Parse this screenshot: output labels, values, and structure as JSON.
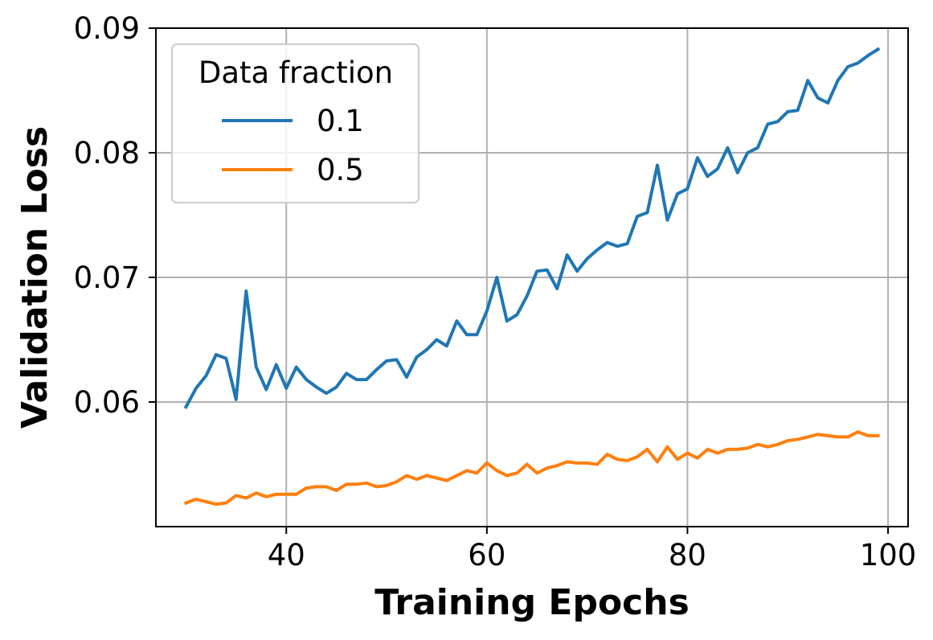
{
  "chart_data": {
    "type": "line",
    "title": "",
    "xlabel": "Training Epochs",
    "ylabel": "Validation Loss",
    "xlim": [
      27,
      102
    ],
    "ylim": [
      0.05,
      0.09
    ],
    "xticks": [
      40,
      60,
      80,
      100
    ],
    "yticks": [
      0.06,
      0.07,
      0.08,
      0.09
    ],
    "xtick_labels": [
      "40",
      "60",
      "80",
      "100"
    ],
    "ytick_labels": [
      "0.06",
      "0.07",
      "0.08",
      "0.09"
    ],
    "grid": true,
    "legend": {
      "title": "Data fraction",
      "position": "top-left"
    },
    "x": [
      30,
      31,
      32,
      33,
      34,
      35,
      36,
      37,
      38,
      39,
      40,
      41,
      42,
      43,
      44,
      45,
      46,
      47,
      48,
      49,
      50,
      51,
      52,
      53,
      54,
      55,
      56,
      57,
      58,
      59,
      60,
      61,
      62,
      63,
      64,
      65,
      66,
      67,
      68,
      69,
      70,
      71,
      72,
      73,
      74,
      75,
      76,
      77,
      78,
      79,
      80,
      81,
      82,
      83,
      84,
      85,
      86,
      87,
      88,
      89,
      90,
      91,
      92,
      93,
      94,
      95,
      96,
      97,
      98,
      99
    ],
    "series": [
      {
        "name": "0.1",
        "color": "#1f77b4",
        "values": [
          0.0596,
          0.0611,
          0.0621,
          0.0638,
          0.0635,
          0.0602,
          0.0689,
          0.0628,
          0.061,
          0.063,
          0.0611,
          0.0628,
          0.0618,
          0.0612,
          0.0607,
          0.0612,
          0.0623,
          0.0618,
          0.0618,
          0.0626,
          0.0633,
          0.0634,
          0.062,
          0.0636,
          0.0642,
          0.065,
          0.0645,
          0.0665,
          0.0654,
          0.0654,
          0.0673,
          0.07,
          0.0665,
          0.067,
          0.0685,
          0.0705,
          0.0706,
          0.0691,
          0.0718,
          0.0705,
          0.0715,
          0.0722,
          0.0728,
          0.0725,
          0.0727,
          0.0749,
          0.0752,
          0.079,
          0.0746,
          0.0767,
          0.0771,
          0.0796,
          0.0781,
          0.0787,
          0.0804,
          0.0784,
          0.08,
          0.0804,
          0.0823,
          0.0825,
          0.0833,
          0.0834,
          0.0858,
          0.0844,
          0.084,
          0.0858,
          0.0869,
          0.0872,
          0.0878,
          0.0883
        ]
      },
      {
        "name": "0.5",
        "color": "#ff7f0e",
        "values": [
          0.0519,
          0.0522,
          0.052,
          0.0518,
          0.0519,
          0.0525,
          0.0523,
          0.0527,
          0.0524,
          0.0526,
          0.0526,
          0.0526,
          0.0531,
          0.0532,
          0.0532,
          0.0529,
          0.0534,
          0.0534,
          0.0535,
          0.0532,
          0.0533,
          0.0536,
          0.0541,
          0.0538,
          0.0541,
          0.0539,
          0.0537,
          0.0541,
          0.0545,
          0.0543,
          0.0551,
          0.0545,
          0.0541,
          0.0543,
          0.055,
          0.0543,
          0.0547,
          0.0549,
          0.0552,
          0.0551,
          0.0551,
          0.055,
          0.0558,
          0.0554,
          0.0553,
          0.0556,
          0.0562,
          0.0552,
          0.0564,
          0.0554,
          0.0559,
          0.0555,
          0.0562,
          0.0559,
          0.0562,
          0.0562,
          0.0563,
          0.0566,
          0.0564,
          0.0566,
          0.0569,
          0.057,
          0.0572,
          0.0574,
          0.0573,
          0.0572,
          0.0572,
          0.0576,
          0.0573,
          0.0573
        ]
      }
    ]
  }
}
